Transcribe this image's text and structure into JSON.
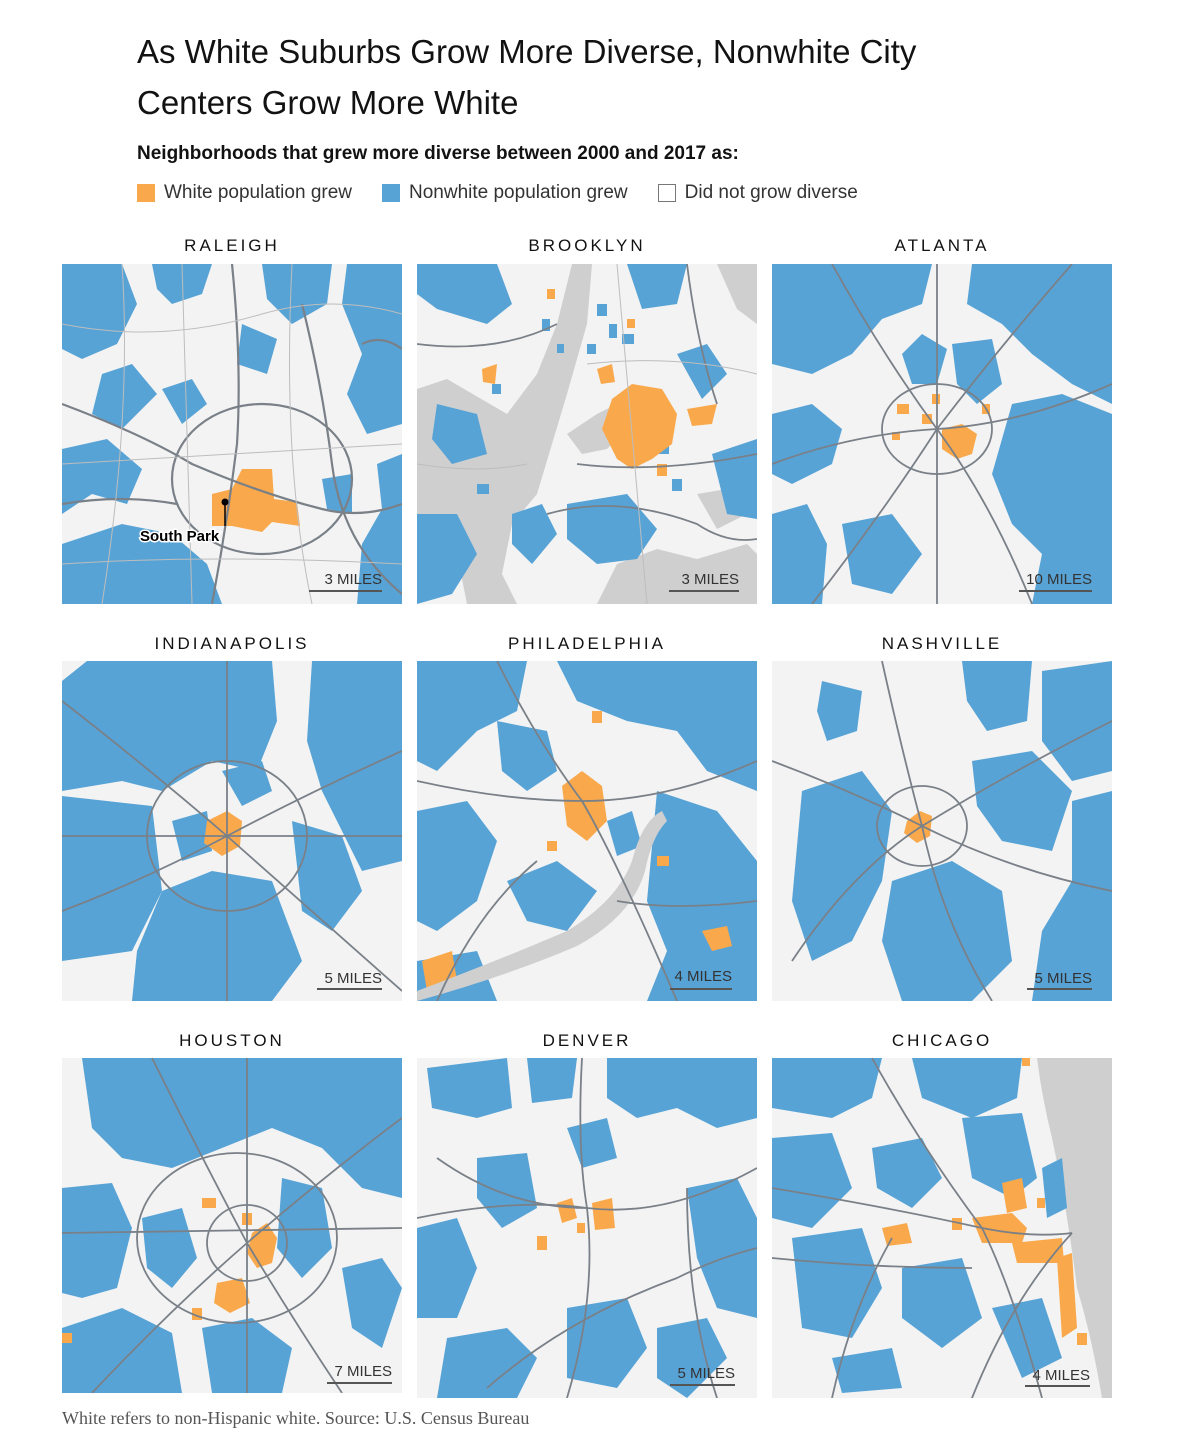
{
  "title": "As White Suburbs Grow More Diverse, Nonwhite City Centers Grow More White",
  "subhead": "Neighborhoods that grew more diverse between 2000 and 2017 as:",
  "legend": [
    {
      "label": "White population grew",
      "color": "#f9a94b"
    },
    {
      "label": "Nonwhite population grew",
      "color": "#58a3d6"
    },
    {
      "label": "Did not grow diverse",
      "color": "#ffffff"
    }
  ],
  "colors": {
    "white_grew": "#f9a94b",
    "nonwhite_grew": "#58a3d6",
    "no_change": "#f3f3f3",
    "water": "#cfcfcf",
    "roads": "#7a8088"
  },
  "maps": [
    {
      "city": "RALEIGH",
      "scale": "3 MILES",
      "annotation": "South Park"
    },
    {
      "city": "BROOKLYN",
      "scale": "3 MILES"
    },
    {
      "city": "ATLANTA",
      "scale": "10 MILES"
    },
    {
      "city": "INDIANAPOLIS",
      "scale": "5 MILES"
    },
    {
      "city": "PHILADELPHIA",
      "scale": "4 MILES"
    },
    {
      "city": "NASHVILLE",
      "scale": "5 MILES"
    },
    {
      "city": "HOUSTON",
      "scale": "7 MILES"
    },
    {
      "city": "DENVER",
      "scale": "5 MILES"
    },
    {
      "city": "CHICAGO",
      "scale": "4 MILES"
    }
  ],
  "footer": "White refers to non-Hispanic white. Source: U.S. Census Bureau"
}
